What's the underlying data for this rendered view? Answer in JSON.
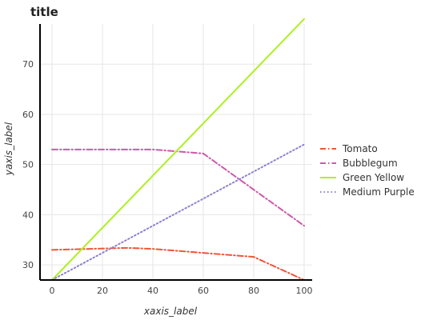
{
  "chart_data": {
    "type": "line",
    "title": "title",
    "xlabel": "xaxis_label",
    "ylabel": "yaxis_label",
    "xlim": [
      0,
      100
    ],
    "ylim": [
      27,
      78
    ],
    "x_ticks": [
      0,
      20,
      40,
      60,
      80,
      100
    ],
    "y_ticks": [
      30,
      40,
      50,
      60,
      70
    ],
    "grid": true,
    "legend_position": "right",
    "series": [
      {
        "name": "Tomato",
        "color": "#f0553a",
        "dash": "dashdot",
        "x": [
          0,
          30,
          40,
          80,
          100
        ],
        "y": [
          33,
          33.4,
          33.2,
          31.6,
          27
        ]
      },
      {
        "name": "Bubblegum",
        "color": "#cc5aa8",
        "dash": "dashdot",
        "x": [
          0,
          40,
          60,
          100
        ],
        "y": [
          53,
          53,
          52.2,
          37.8
        ]
      },
      {
        "name": "Green Yellow",
        "color": "#adf022",
        "dash": "solid",
        "x": [
          0,
          100
        ],
        "y": [
          27,
          79
        ]
      },
      {
        "name": "Medium Purple",
        "color": "#8f7fd0",
        "dash": "dot",
        "x": [
          0,
          100
        ],
        "y": [
          27,
          54
        ]
      }
    ]
  }
}
